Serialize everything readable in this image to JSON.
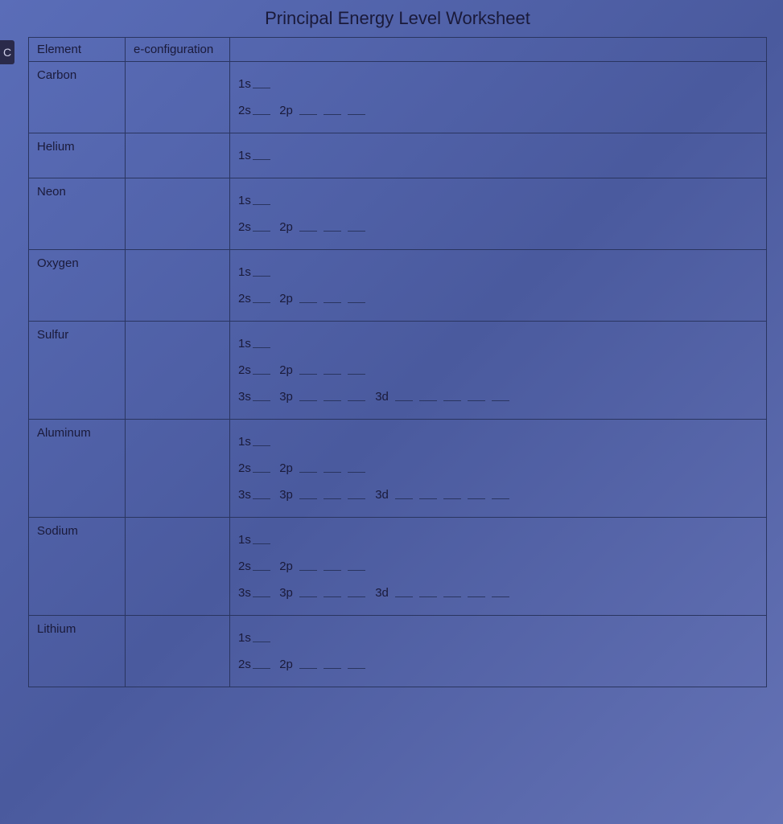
{
  "title": "Principal Energy Level Worksheet",
  "edge_tab": "C",
  "colors": {
    "background_gradient_start": "#5a6db8",
    "background_gradient_mid": "#4a5a9e",
    "background_gradient_end": "#6472b5",
    "text": "#1a1a3a",
    "border": "#2a3560",
    "edge_tab_bg": "#2a2a4a",
    "edge_tab_text": "#d0d0e8"
  },
  "typography": {
    "font_family": "Comic Sans MS",
    "title_fontsize": 22,
    "cell_fontsize": 15
  },
  "headers": {
    "element": "Element",
    "config": "e-configuration",
    "diagram": ""
  },
  "orbital_labels": {
    "s1": "1s",
    "s2": "2s",
    "p2": "2p",
    "s3": "3s",
    "p3": "3p",
    "d3": "3d"
  },
  "orbital_blanks": {
    "s": 1,
    "p": 3,
    "d": 5
  },
  "rows": [
    {
      "element": "Carbon",
      "shells": [
        [
          "s1"
        ],
        [
          "s2",
          "p2"
        ]
      ]
    },
    {
      "element": "Helium",
      "shells": [
        [
          "s1"
        ]
      ]
    },
    {
      "element": "Neon",
      "shells": [
        [
          "s1"
        ],
        [
          "s2",
          "p2"
        ]
      ]
    },
    {
      "element": "Oxygen",
      "shells": [
        [
          "s1"
        ],
        [
          "s2",
          "p2"
        ]
      ]
    },
    {
      "element": "Sulfur",
      "shells": [
        [
          "s1"
        ],
        [
          "s2",
          "p2"
        ],
        [
          "s3",
          "p3",
          "d3"
        ]
      ]
    },
    {
      "element": "Aluminum",
      "shells": [
        [
          "s1"
        ],
        [
          "s2",
          "p2"
        ],
        [
          "s3",
          "p3",
          "d3"
        ]
      ]
    },
    {
      "element": "Sodium",
      "shells": [
        [
          "s1"
        ],
        [
          "s2",
          "p2"
        ],
        [
          "s3",
          "p3",
          "d3"
        ]
      ]
    },
    {
      "element": "Lithium",
      "shells": [
        [
          "s1"
        ],
        [
          "s2",
          "p2"
        ]
      ]
    }
  ]
}
